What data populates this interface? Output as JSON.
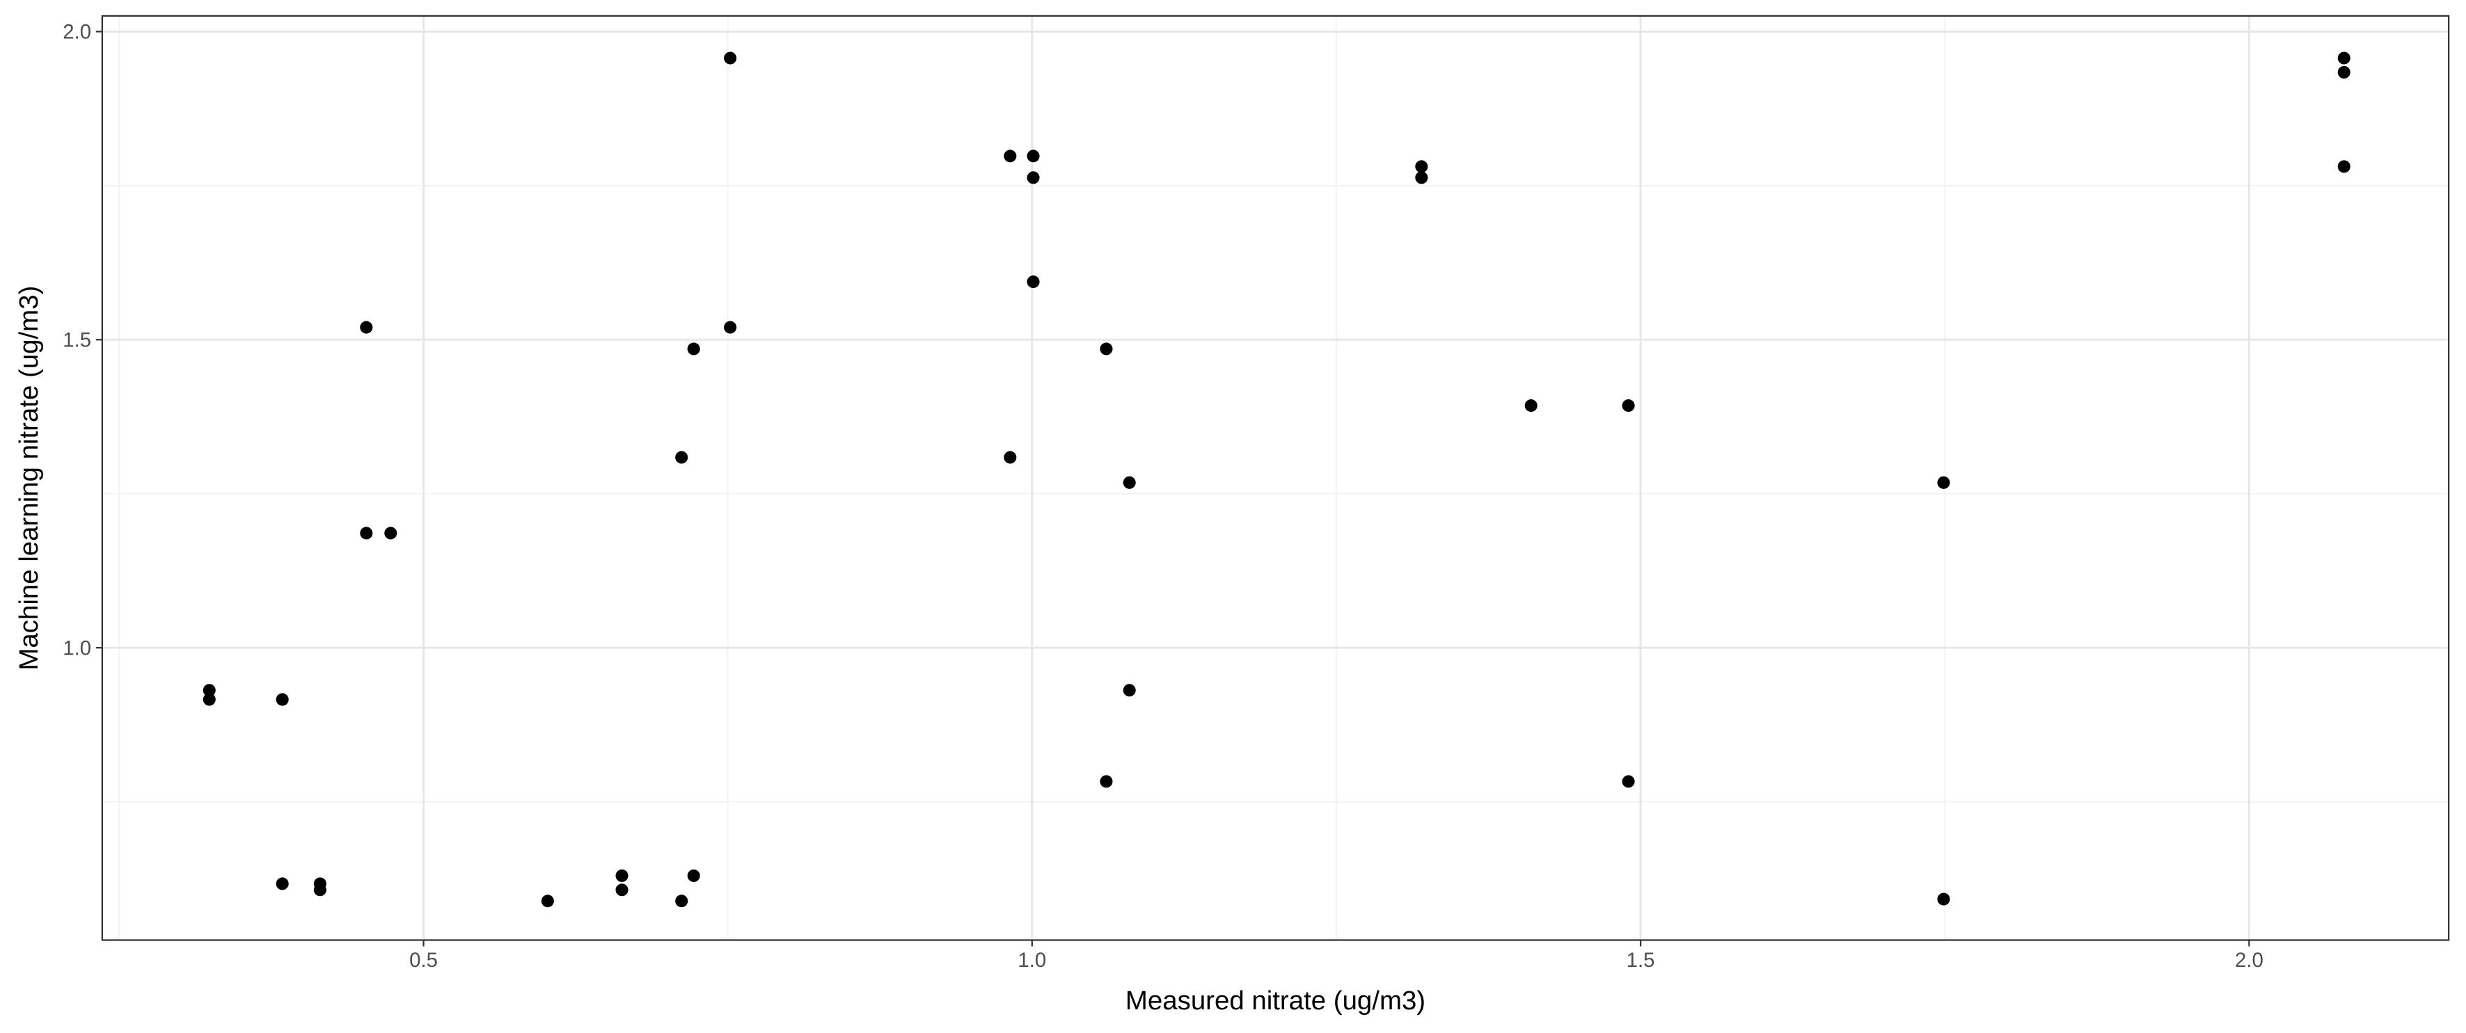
{
  "chart_data": {
    "type": "scatter",
    "x_label": "Measured nitrate (ug/m3)",
    "y_label": "Machine learning nitrate (ug/m3)",
    "xlim": [
      0.236,
      2.164
    ],
    "ylim": [
      0.5255,
      2.0255
    ],
    "xticks": [
      0.5,
      {
        "value": 1.0,
        "label": "1.0"
      },
      1.5,
      {
        "value": 2.0,
        "label": "2.0"
      }
    ],
    "yticks": [
      {
        "value": 1.0,
        "label": "1.0"
      },
      1.5,
      {
        "value": 2.0,
        "label": "2.0"
      }
    ],
    "grid": true,
    "color": "#000000",
    "x": [
      0.324,
      0.324,
      0.384,
      0.384,
      0.415,
      0.415,
      0.453,
      0.453,
      0.473,
      0.602,
      0.663,
      0.663,
      0.712,
      0.712,
      0.722,
      0.722,
      0.752,
      0.752,
      0.982,
      0.982,
      1.001,
      1.001,
      1.001,
      1.061,
      1.061,
      1.08,
      1.08,
      1.32,
      1.32,
      1.41,
      1.49,
      1.49,
      1.749,
      1.749,
      2.078,
      2.078,
      2.078
    ],
    "values": [
      0.931,
      0.916,
      0.916,
      0.617,
      0.617,
      0.607,
      1.52,
      1.186,
      1.186,
      0.589,
      0.63,
      0.607,
      1.309,
      0.589,
      1.485,
      0.63,
      1.957,
      1.52,
      1.798,
      1.309,
      1.798,
      1.763,
      1.594,
      1.485,
      0.783,
      1.268,
      0.931,
      1.781,
      1.763,
      1.393,
      1.393,
      0.783,
      1.268,
      0.592,
      1.957,
      1.934,
      1.781
    ]
  }
}
